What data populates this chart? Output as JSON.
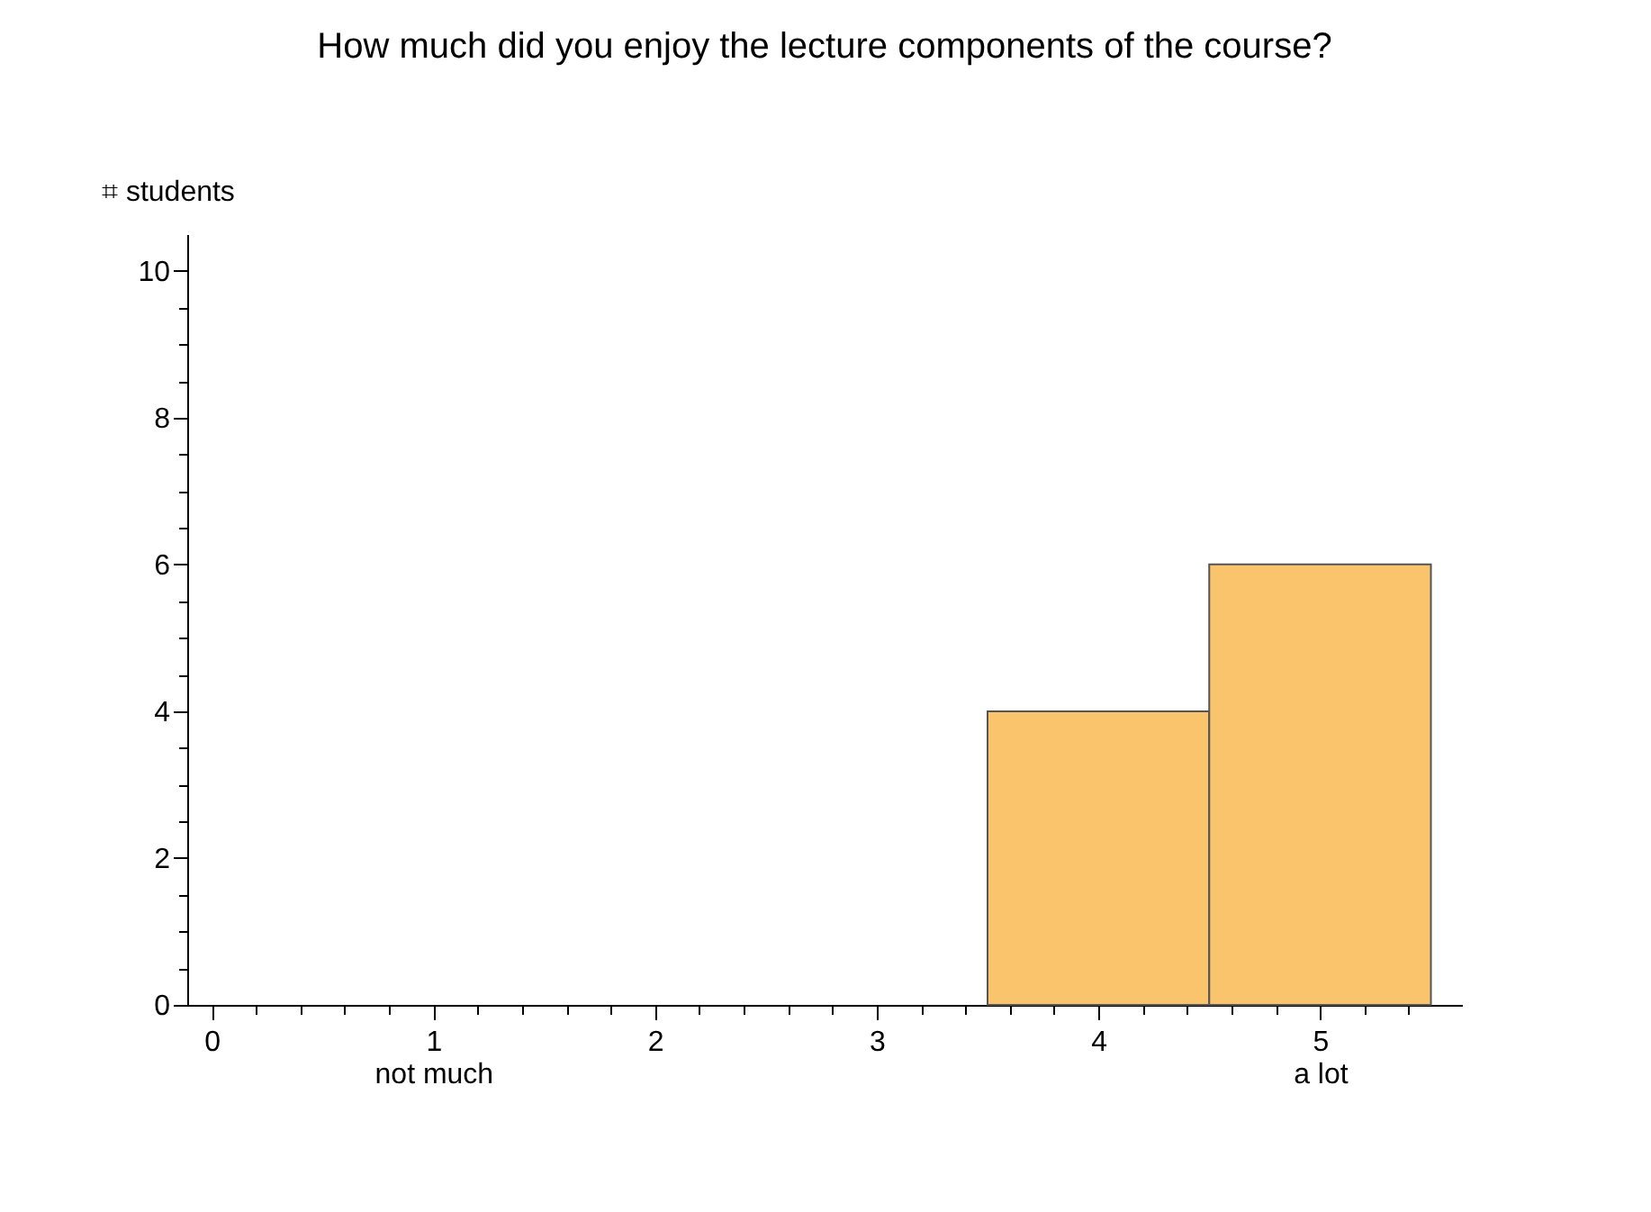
{
  "chart_data": {
    "type": "histogram",
    "title": "How much did you enjoy the lecture components of the course?",
    "ylabel": "⌗ students",
    "bins": [
      3.5,
      4.5,
      5.5
    ],
    "values": [
      4,
      6
    ],
    "color": "#f9c46c",
    "xlim": [
      -0.11,
      5.64
    ],
    "xticks": [
      0,
      {
        "value": 0.2,
        "label": null
      },
      {
        "value": 0.4,
        "label": null
      },
      {
        "value": 0.6,
        "label": null
      },
      {
        "value": 0.8,
        "label": null
      },
      {
        "value": 1,
        "label": "1\nnot much"
      },
      {
        "value": 1.2,
        "label": null
      },
      {
        "value": 1.4,
        "label": null
      },
      {
        "value": 1.6,
        "label": null
      },
      {
        "value": 1.8,
        "label": null
      },
      2,
      {
        "value": 2.2,
        "label": null
      },
      {
        "value": 2.4,
        "label": null
      },
      {
        "value": 2.6,
        "label": null
      },
      {
        "value": 2.8,
        "label": null
      },
      3,
      {
        "value": 3.2,
        "label": null
      },
      {
        "value": 3.4,
        "label": null
      },
      {
        "value": 3.6,
        "label": null
      },
      {
        "value": 3.8,
        "label": null
      },
      4,
      {
        "value": 4.2,
        "label": null
      },
      {
        "value": 4.4,
        "label": null
      },
      {
        "value": 4.6,
        "label": null
      },
      {
        "value": 4.8,
        "label": null
      },
      {
        "value": 5,
        "label": "5\na lot"
      },
      {
        "value": 5.2,
        "label": null
      },
      {
        "value": 5.4,
        "label": null
      }
    ],
    "ylim": [
      0,
      10.5
    ],
    "yticks": [
      0,
      {
        "value": 0.5,
        "label": null
      },
      {
        "value": 1,
        "label": null
      },
      {
        "value": 1.5,
        "label": null
      },
      2,
      {
        "value": 2.5,
        "label": null
      },
      {
        "value": 3,
        "label": null
      },
      {
        "value": 3.5,
        "label": null
      },
      4,
      {
        "value": 4.5,
        "label": null
      },
      {
        "value": 5,
        "label": null
      },
      {
        "value": 5.5,
        "label": null
      },
      6,
      {
        "value": 6.5,
        "label": null
      },
      {
        "value": 7,
        "label": null
      },
      {
        "value": 7.5,
        "label": null
      },
      8,
      {
        "value": 8.5,
        "label": null
      },
      {
        "value": 9,
        "label": null
      },
      {
        "value": 9.5,
        "label": null
      },
      10
    ],
    "grid": false
  }
}
